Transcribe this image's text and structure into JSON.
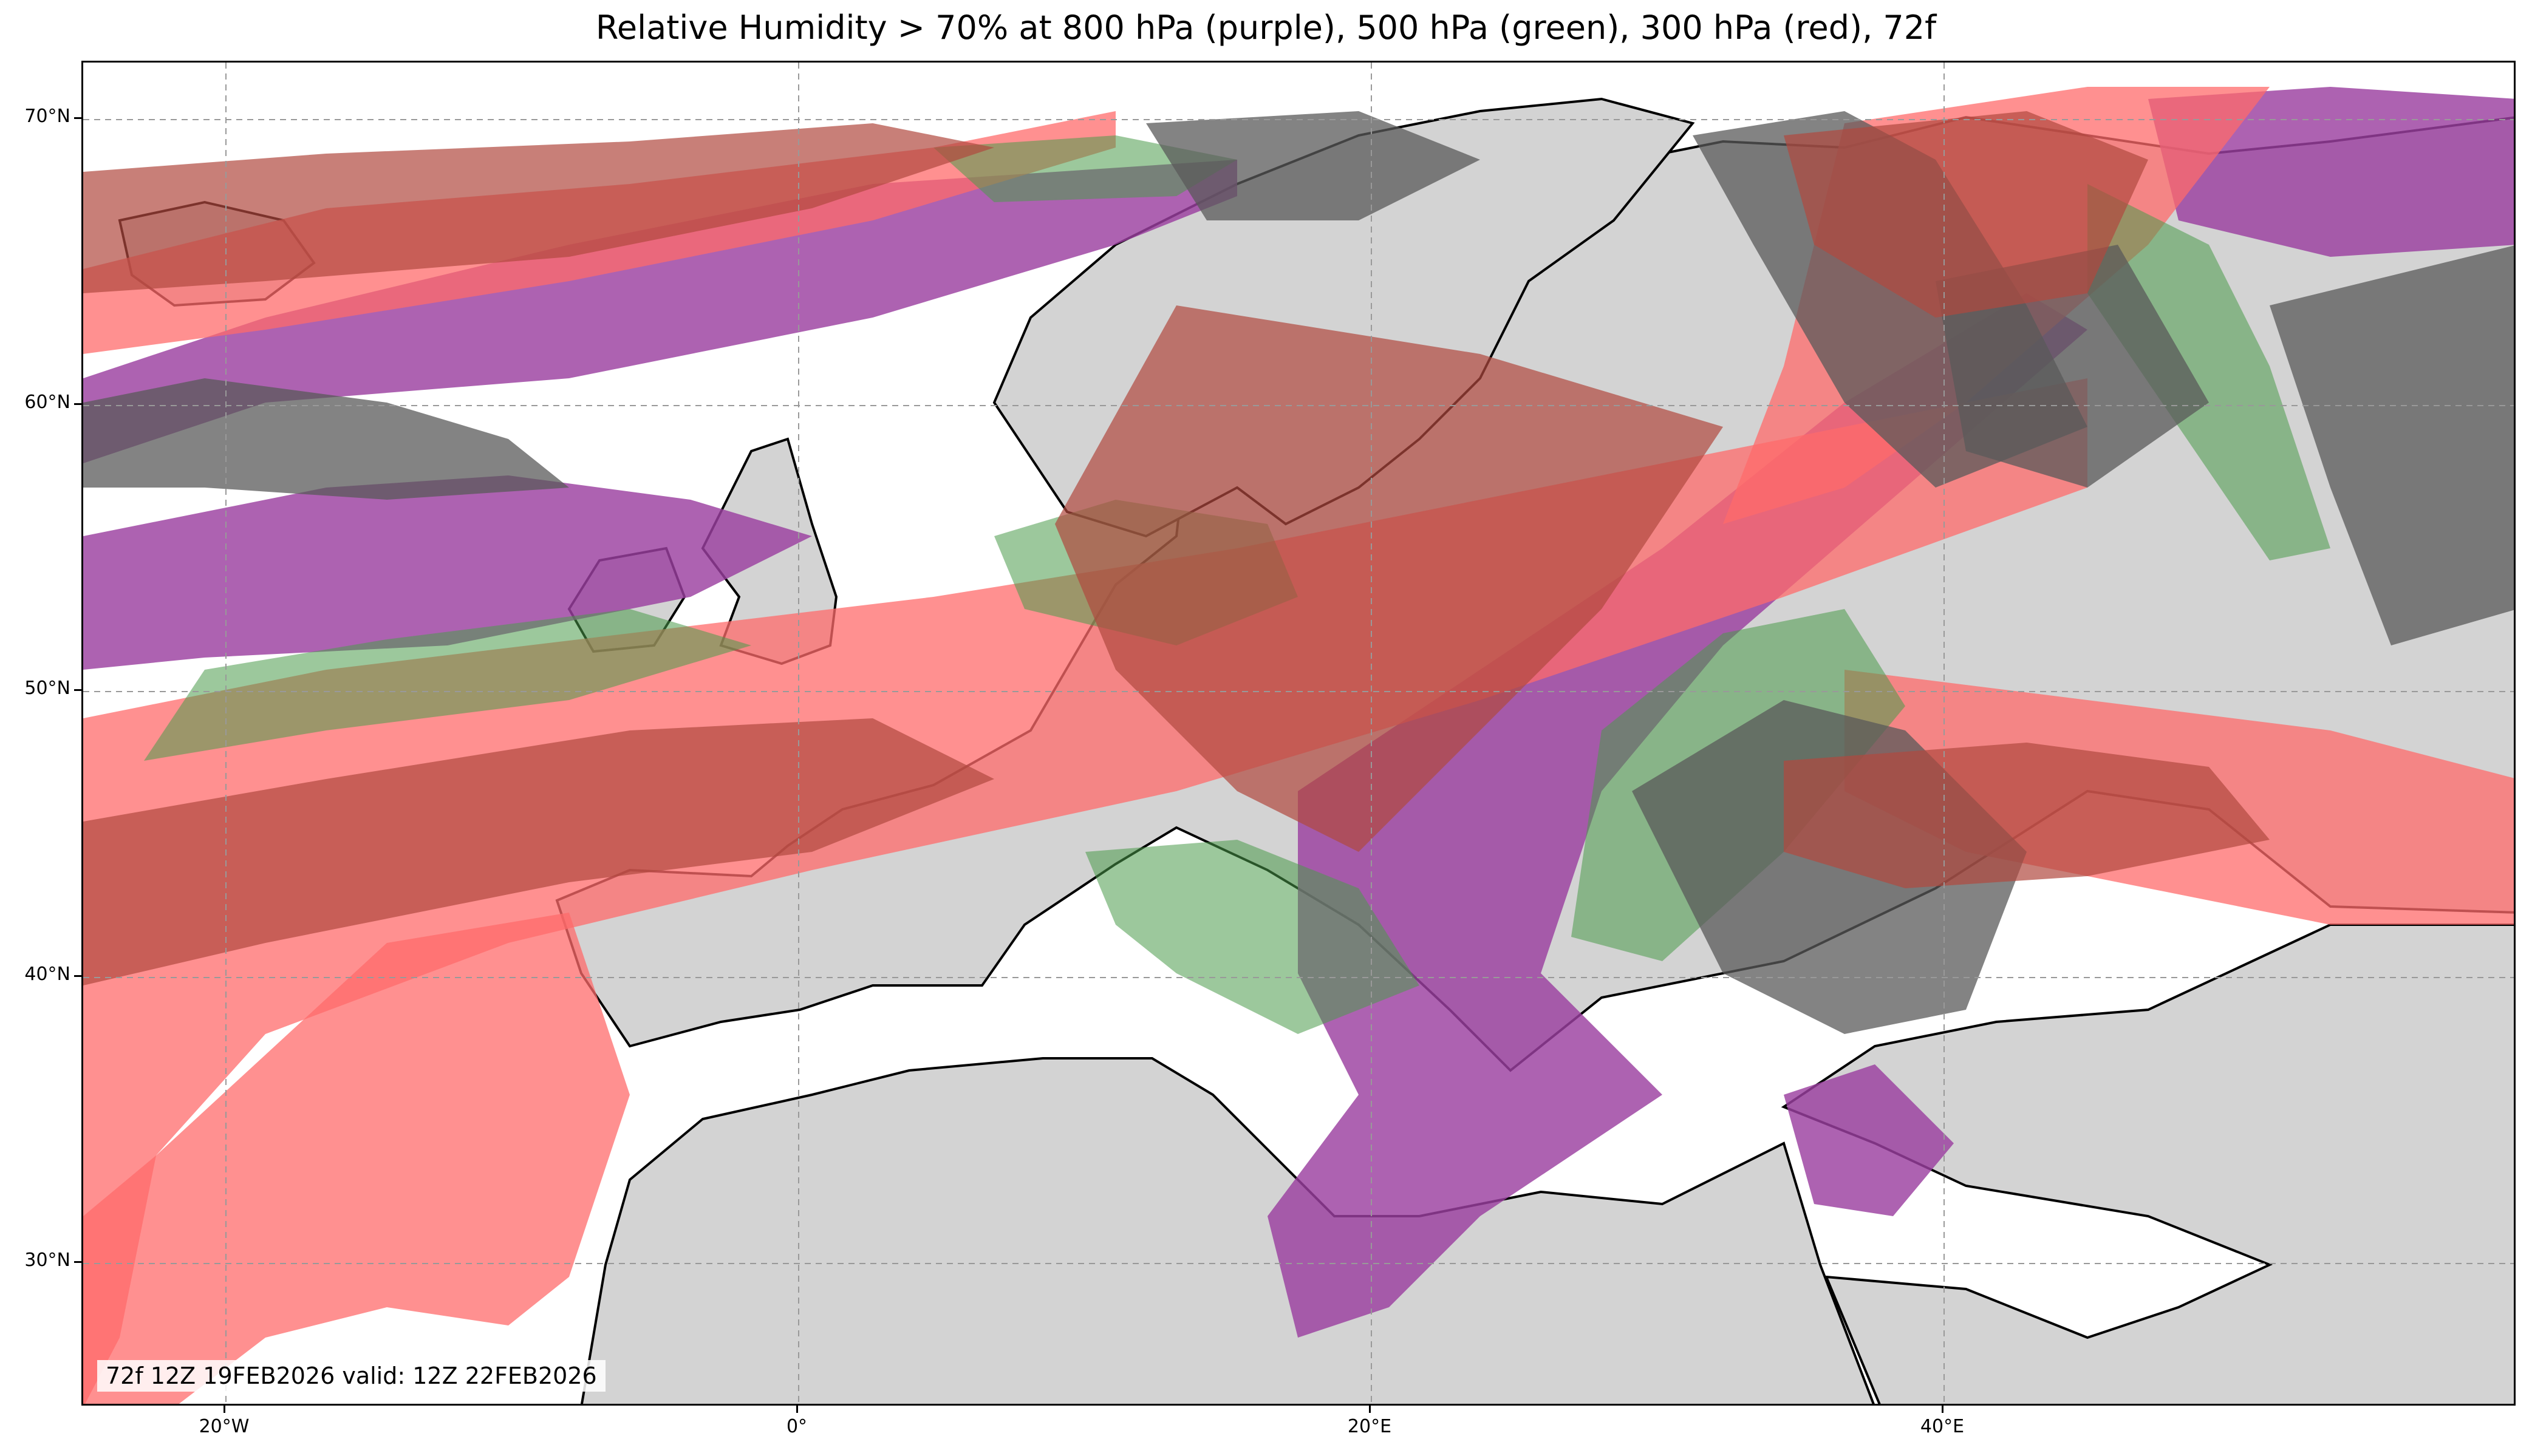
{
  "title": "Relative Humidity > 70% at 800 hPa (purple), 500 hPa (green), 300 hPa (red), 72f",
  "timestamp": "72f 12Z 19FEB2026 valid: 12Z 22FEB2026",
  "axes": {
    "lat_labels": [
      "70°N",
      "60°N",
      "50°N",
      "40°N",
      "30°N"
    ],
    "lon_labels": [
      "20°W",
      "0°",
      "20°E",
      "40°E"
    ]
  },
  "colors": {
    "land": "#d3d3d3",
    "ocean": "#ffffff",
    "rh800": "#9b3fa0",
    "rh500": "#4a9a4a",
    "rh300": "#ff6b6b",
    "coastline": "#000000",
    "grid": "#999999"
  },
  "map": {
    "projection": "plate-carree",
    "lon_range": [
      -25,
      60
    ],
    "lat_range": [
      25,
      72
    ],
    "grid": true
  }
}
